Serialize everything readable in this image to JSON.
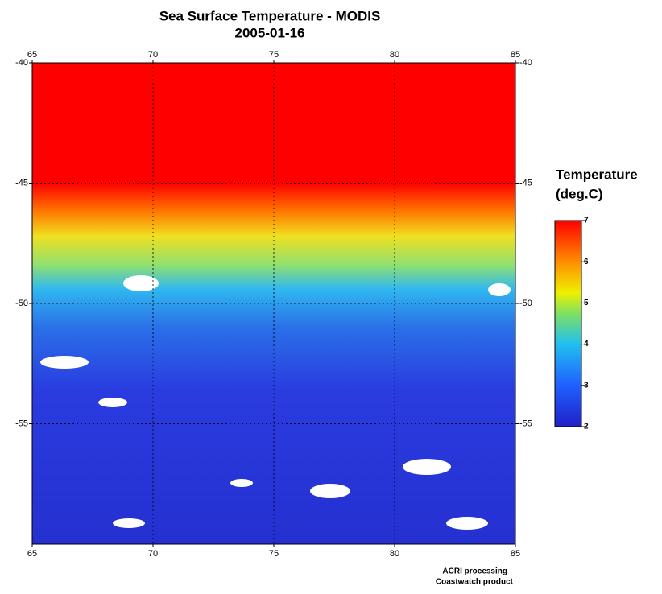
{
  "map": {
    "title": "Sea Surface Temperature - MODIS",
    "subtitle": "2005-01-16",
    "xlim": [
      65,
      85
    ],
    "xticks": [
      65,
      70,
      75,
      80,
      85
    ],
    "ylim": [
      -40,
      -60
    ],
    "yticks": [
      -40,
      -45,
      -50,
      -55
    ],
    "grid": true
  },
  "colorbar": {
    "title_lines": [
      "Temperature",
      "(deg.C)"
    ],
    "lim": [
      2,
      7
    ],
    "ticks": [
      2,
      3,
      4,
      5,
      6,
      7
    ]
  },
  "credits": [
    "ACRI processing",
    "Coastwatch product"
  ]
}
